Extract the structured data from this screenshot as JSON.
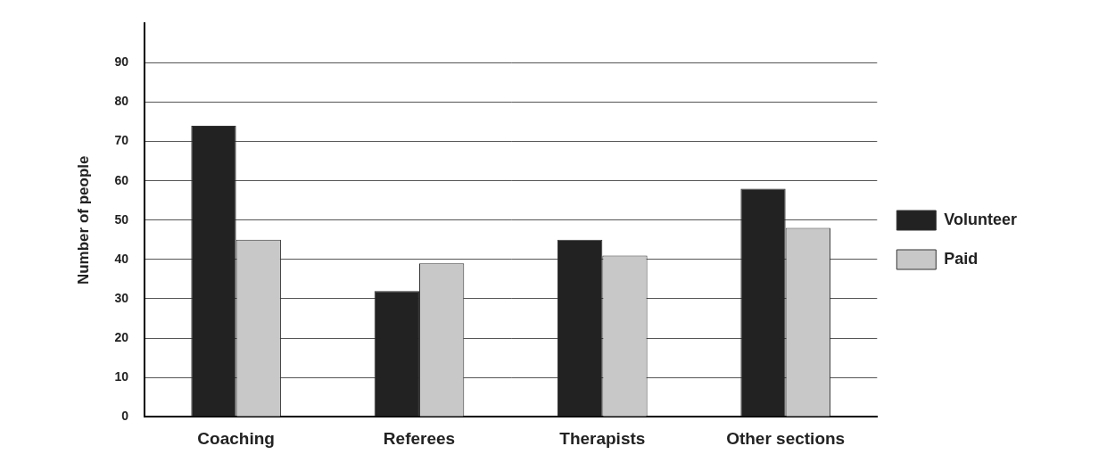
{
  "chart_data": {
    "type": "bar",
    "categories": [
      "Coaching",
      "Referees",
      "Therapists",
      "Other sections"
    ],
    "series": [
      {
        "name": "Volunteer",
        "color": "#222222",
        "values": [
          74,
          32,
          45,
          58
        ]
      },
      {
        "name": "Paid",
        "color": "#c8c8c8",
        "values": [
          45,
          39,
          41,
          48
        ]
      }
    ],
    "y_label": "Number of people",
    "ylim": [
      0,
      100
    ],
    "yticks": [
      0,
      10,
      20,
      30,
      40,
      50,
      60,
      70,
      80,
      90
    ],
    "grid": true,
    "legend": "right"
  }
}
